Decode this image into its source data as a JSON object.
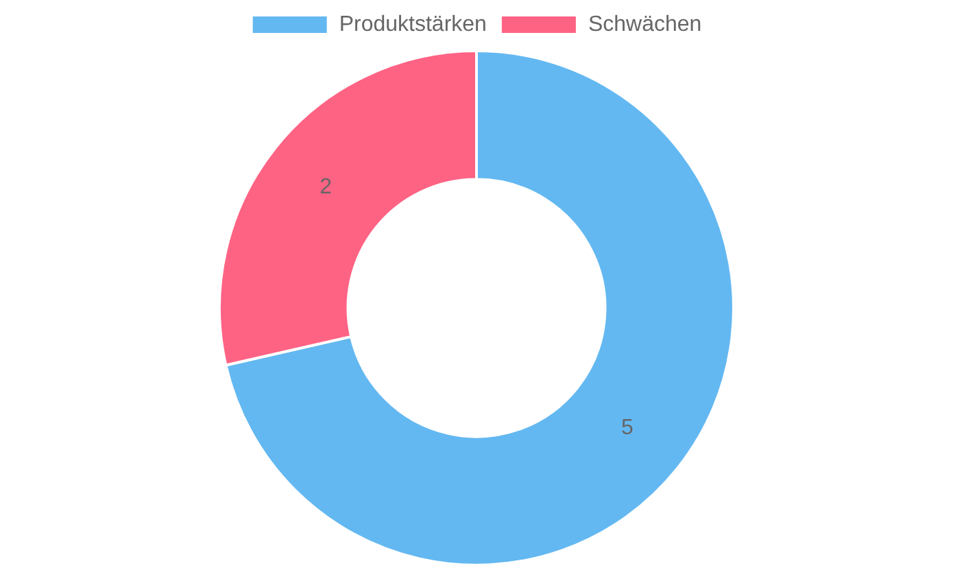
{
  "chart_data": {
    "type": "donut",
    "categories": [
      "Produktstärken",
      "Schwächen"
    ],
    "values": [
      5,
      2
    ],
    "colors": [
      "#63b8f1",
      "#ff6384"
    ],
    "legend": "top",
    "data_labels": true
  }
}
